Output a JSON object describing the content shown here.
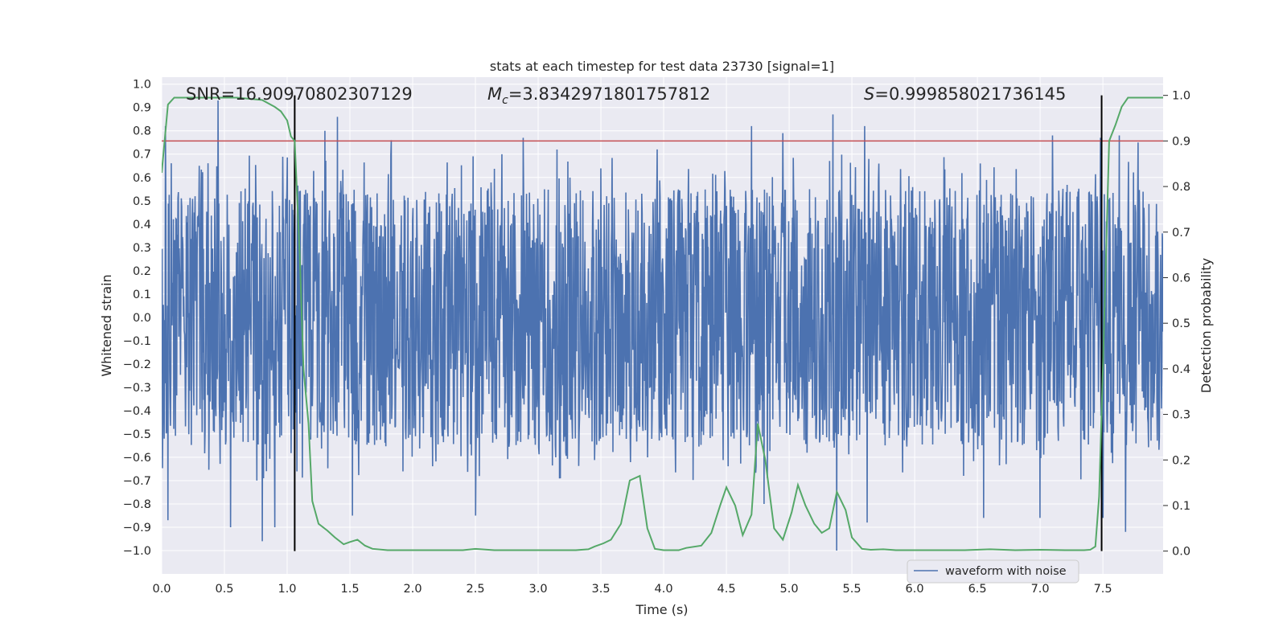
{
  "chart_data": {
    "type": "line",
    "title": "stats at each timestep for test data 23730 [signal=1]",
    "xlabel": "Time (s)",
    "ylabel": "Whitened strain",
    "y2label": "Detection probability",
    "xlim": [
      0.0,
      7.98
    ],
    "ylim": [
      -1.1,
      1.03
    ],
    "y2lim": [
      -0.05,
      1.04
    ],
    "x_ticks": [
      "0.0",
      "0.5",
      "1.0",
      "1.5",
      "2.0",
      "2.5",
      "3.0",
      "3.5",
      "4.0",
      "4.5",
      "5.0",
      "5.5",
      "6.0",
      "6.5",
      "7.0",
      "7.5"
    ],
    "x_tick_values": [
      0.0,
      0.5,
      1.0,
      1.5,
      2.0,
      2.5,
      3.0,
      3.5,
      4.0,
      4.5,
      5.0,
      5.5,
      6.0,
      6.5,
      7.0,
      7.5
    ],
    "y_ticks": [
      "1.0",
      "0.9",
      "0.8",
      "0.7",
      "0.6",
      "0.5",
      "0.4",
      "0.3",
      "0.2",
      "0.1",
      "0.0",
      "−0.1",
      "−0.2",
      "−0.3",
      "−0.4",
      "−0.5",
      "−0.6",
      "−0.7",
      "−0.8",
      "−0.9",
      "−1.0"
    ],
    "y_tick_values": [
      1.0,
      0.9,
      0.8,
      0.7,
      0.6,
      0.5,
      0.4,
      0.3,
      0.2,
      0.1,
      0.0,
      -0.1,
      -0.2,
      -0.3,
      -0.4,
      -0.5,
      -0.6,
      -0.7,
      -0.8,
      -0.9,
      -1.0
    ],
    "y2_ticks": [
      "1.0",
      "0.9",
      "0.8",
      "0.7",
      "0.6",
      "0.5",
      "0.4",
      "0.3",
      "0.2",
      "0.1",
      "0.0"
    ],
    "y2_tick_values": [
      1.0,
      0.9,
      0.8,
      0.7,
      0.6,
      0.5,
      0.4,
      0.3,
      0.2,
      0.1,
      0.0
    ],
    "annotations": {
      "snr": "SNR=16.90970802307129",
      "mc_symbol": "M",
      "mc_sub": "c",
      "mc_value": "=3.8342971801757812",
      "s_symbol": "S",
      "s_value": "=0.999858021736145"
    },
    "legend": {
      "label": "waveform with noise",
      "location": "lower-right"
    },
    "threshold_y2": 0.9,
    "event_lines_x": [
      1.06,
      7.49
    ],
    "waveform": {
      "name": "waveform with noise",
      "duration_s": 7.98,
      "core_amplitude": 0.33,
      "samples": 2400,
      "spikes": [
        {
          "t": 0.03,
          "v": 0.82
        },
        {
          "t": 0.05,
          "v": -0.87
        },
        {
          "t": 0.3,
          "v": 0.65
        },
        {
          "t": 0.45,
          "v": 0.93
        },
        {
          "t": 0.55,
          "v": -0.9
        },
        {
          "t": 0.8,
          "v": -0.96
        },
        {
          "t": 0.9,
          "v": -0.9
        },
        {
          "t": 1.3,
          "v": 0.8
        },
        {
          "t": 1.4,
          "v": 0.86
        },
        {
          "t": 1.52,
          "v": -0.85
        },
        {
          "t": 1.83,
          "v": 0.76
        },
        {
          "t": 2.5,
          "v": -0.85
        },
        {
          "t": 2.88,
          "v": 0.77
        },
        {
          "t": 3.15,
          "v": 0.72
        },
        {
          "t": 3.95,
          "v": 0.72
        },
        {
          "t": 4.7,
          "v": 0.82
        },
        {
          "t": 4.8,
          "v": -0.8
        },
        {
          "t": 4.95,
          "v": 0.79
        },
        {
          "t": 5.35,
          "v": 0.87
        },
        {
          "t": 5.38,
          "v": -1.0
        },
        {
          "t": 5.6,
          "v": 0.82
        },
        {
          "t": 5.62,
          "v": -0.88
        },
        {
          "t": 6.55,
          "v": -0.86
        },
        {
          "t": 7.0,
          "v": -0.86
        },
        {
          "t": 7.1,
          "v": 0.78
        },
        {
          "t": 7.48,
          "v": 0.77
        },
        {
          "t": 7.5,
          "v": -0.86
        },
        {
          "t": 7.63,
          "v": 0.78
        },
        {
          "t": 7.68,
          "v": -0.92
        },
        {
          "t": 7.78,
          "v": 0.75
        }
      ]
    },
    "probability": {
      "x": [
        0.0,
        0.05,
        0.1,
        0.2,
        0.4,
        0.6,
        0.8,
        0.9,
        0.95,
        1.0,
        1.03,
        1.06,
        1.1,
        1.13,
        1.17,
        1.2,
        1.25,
        1.32,
        1.38,
        1.45,
        1.5,
        1.56,
        1.62,
        1.68,
        1.8,
        2.0,
        2.4,
        2.5,
        2.65,
        2.8,
        3.0,
        3.2,
        3.3,
        3.4,
        3.45,
        3.52,
        3.58,
        3.66,
        3.73,
        3.81,
        3.87,
        3.93,
        4.0,
        4.12,
        4.18,
        4.3,
        4.38,
        4.45,
        4.5,
        4.57,
        4.63,
        4.7,
        4.75,
        4.81,
        4.88,
        4.95,
        5.02,
        5.07,
        5.13,
        5.2,
        5.26,
        5.32,
        5.38,
        5.45,
        5.5,
        5.58,
        5.65,
        5.75,
        5.85,
        6.0,
        6.2,
        6.4,
        6.6,
        6.8,
        7.0,
        7.2,
        7.35,
        7.4,
        7.44,
        7.47,
        7.5,
        7.55,
        7.6,
        7.65,
        7.7,
        7.8,
        7.9,
        7.98
      ],
      "y": [
        0.83,
        0.98,
        0.995,
        0.995,
        0.995,
        0.995,
        0.99,
        0.975,
        0.965,
        0.945,
        0.91,
        0.9,
        0.65,
        0.4,
        0.28,
        0.11,
        0.06,
        0.045,
        0.03,
        0.015,
        0.02,
        0.025,
        0.012,
        0.005,
        0.002,
        0.002,
        0.002,
        0.005,
        0.002,
        0.002,
        0.002,
        0.002,
        0.002,
        0.004,
        0.01,
        0.017,
        0.025,
        0.06,
        0.155,
        0.165,
        0.05,
        0.005,
        0.002,
        0.002,
        0.007,
        0.012,
        0.04,
        0.1,
        0.14,
        0.1,
        0.035,
        0.08,
        0.28,
        0.2,
        0.05,
        0.025,
        0.085,
        0.145,
        0.1,
        0.06,
        0.04,
        0.05,
        0.13,
        0.09,
        0.03,
        0.005,
        0.003,
        0.004,
        0.002,
        0.002,
        0.002,
        0.002,
        0.004,
        0.002,
        0.003,
        0.002,
        0.002,
        0.003,
        0.01,
        0.12,
        0.4,
        0.9,
        0.935,
        0.975,
        0.995,
        0.995,
        0.995,
        0.995
      ]
    },
    "colors": {
      "waveform": "#4c72b0",
      "probability": "#55a868",
      "threshold": "#c44e52",
      "event_lines": "#000000",
      "axes_bg": "#eaeaf2",
      "grid": "#ffffff"
    }
  }
}
